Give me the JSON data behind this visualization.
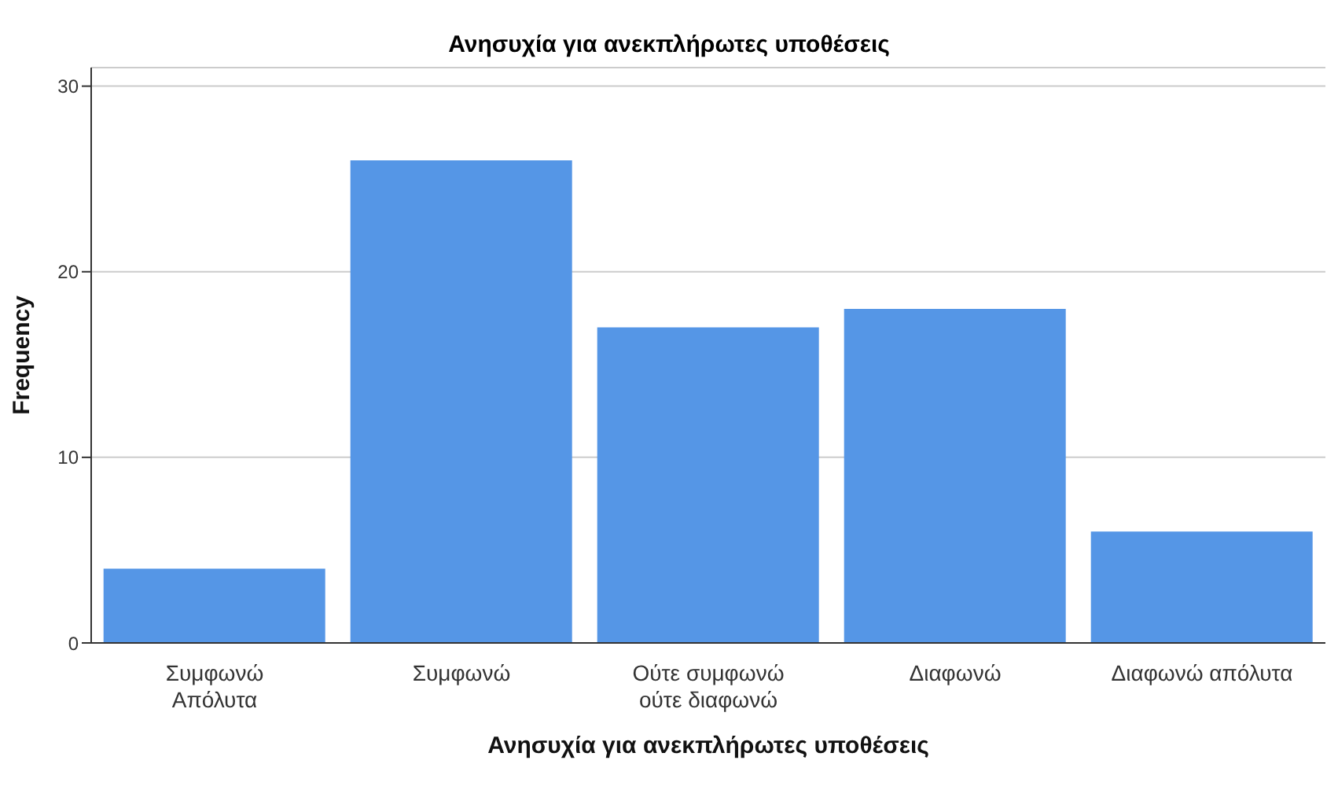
{
  "chart_data": {
    "type": "bar",
    "title": "Ανησυχία για ανεκπλήρωτες υποθέσεις",
    "xlabel": "Ανησυχία για ανεκπλήρωτες υποθέσεις",
    "ylabel": "Frequency",
    "categories": [
      "Συμφωνώ\nΑπόλυτα",
      "Συμφωνώ",
      "Ούτε συμφωνώ\nούτε διαφωνώ",
      "Διαφωνώ",
      "Διαφωνώ απόλυτα"
    ],
    "values": [
      4,
      26,
      17,
      18,
      6
    ],
    "color": "#5596e6",
    "ylim": [
      0,
      31
    ],
    "yticks": [
      0,
      10,
      20,
      30
    ],
    "grid": "y"
  }
}
